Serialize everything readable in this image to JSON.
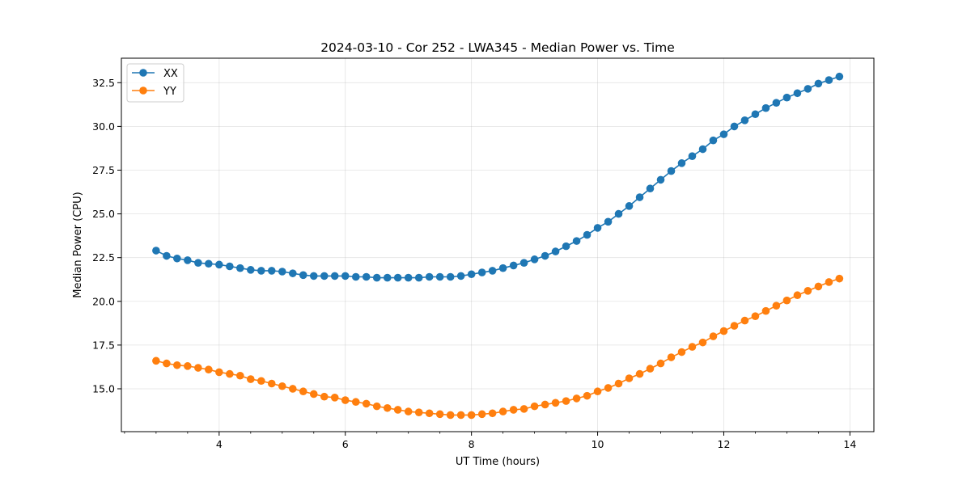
{
  "chart_data": {
    "type": "line",
    "title": "2024-03-10 - Cor 252 - LWA345 - Median Power vs. Time",
    "xlabel": "UT Time (hours)",
    "ylabel": "Median Power (CPU)",
    "xlim": [
      2.45,
      14.38
    ],
    "ylim": [
      12.55,
      33.9
    ],
    "xticks": [
      4,
      6,
      8,
      10,
      12,
      14
    ],
    "xtick_labels": [
      "4",
      "6",
      "8",
      "10",
      "12",
      "14"
    ],
    "yticks": [
      15.0,
      17.5,
      20.0,
      22.5,
      25.0,
      27.5,
      30.0,
      32.5
    ],
    "ytick_labels": [
      "15.0",
      "17.5",
      "20.0",
      "22.5",
      "25.0",
      "27.5",
      "30.0",
      "32.5"
    ],
    "grid": true,
    "legend_position": "top-left",
    "x": [
      3.0,
      3.167,
      3.333,
      3.5,
      3.667,
      3.833,
      4.0,
      4.167,
      4.333,
      4.5,
      4.667,
      4.833,
      5.0,
      5.167,
      5.333,
      5.5,
      5.667,
      5.833,
      6.0,
      6.167,
      6.333,
      6.5,
      6.667,
      6.833,
      7.0,
      7.167,
      7.333,
      7.5,
      7.667,
      7.833,
      8.0,
      8.167,
      8.333,
      8.5,
      8.667,
      8.833,
      9.0,
      9.167,
      9.333,
      9.5,
      9.667,
      9.833,
      10.0,
      10.167,
      10.333,
      10.5,
      10.667,
      10.833,
      11.0,
      11.167,
      11.333,
      11.5,
      11.667,
      11.833,
      12.0,
      12.167,
      12.333,
      12.5,
      12.667,
      12.833,
      13.0,
      13.167,
      13.333,
      13.5,
      13.667,
      13.833
    ],
    "series": [
      {
        "name": "XX",
        "color": "#1f77b4",
        "values": [
          22.9,
          22.6,
          22.45,
          22.35,
          22.2,
          22.15,
          22.1,
          22.0,
          21.9,
          21.8,
          21.75,
          21.75,
          21.7,
          21.6,
          21.5,
          21.45,
          21.45,
          21.45,
          21.45,
          21.4,
          21.4,
          21.35,
          21.35,
          21.35,
          21.35,
          21.35,
          21.4,
          21.4,
          21.4,
          21.45,
          21.55,
          21.65,
          21.75,
          21.9,
          22.05,
          22.2,
          22.4,
          22.6,
          22.85,
          23.15,
          23.45,
          23.8,
          24.2,
          24.55,
          25.0,
          25.45,
          25.95,
          26.45,
          26.95,
          27.45,
          27.9,
          28.3,
          28.7,
          29.2,
          29.55,
          30.0,
          30.35,
          30.7,
          31.05,
          31.35,
          31.65,
          31.9,
          32.15,
          32.45,
          32.65,
          32.85
        ]
      },
      {
        "name": "YY",
        "color": "#ff7f0e",
        "values": [
          16.6,
          16.45,
          16.35,
          16.3,
          16.2,
          16.1,
          15.95,
          15.85,
          15.75,
          15.55,
          15.45,
          15.3,
          15.15,
          15.0,
          14.85,
          14.7,
          14.55,
          14.5,
          14.35,
          14.25,
          14.15,
          14.0,
          13.9,
          13.8,
          13.7,
          13.65,
          13.6,
          13.55,
          13.5,
          13.5,
          13.5,
          13.55,
          13.6,
          13.7,
          13.8,
          13.85,
          14.0,
          14.1,
          14.2,
          14.3,
          14.45,
          14.6,
          14.85,
          15.05,
          15.3,
          15.6,
          15.85,
          16.15,
          16.45,
          16.8,
          17.1,
          17.4,
          17.65,
          18.0,
          18.3,
          18.6,
          18.9,
          19.15,
          19.45,
          19.75,
          20.05,
          20.35,
          20.6,
          20.85,
          21.1,
          21.3
        ]
      }
    ]
  }
}
